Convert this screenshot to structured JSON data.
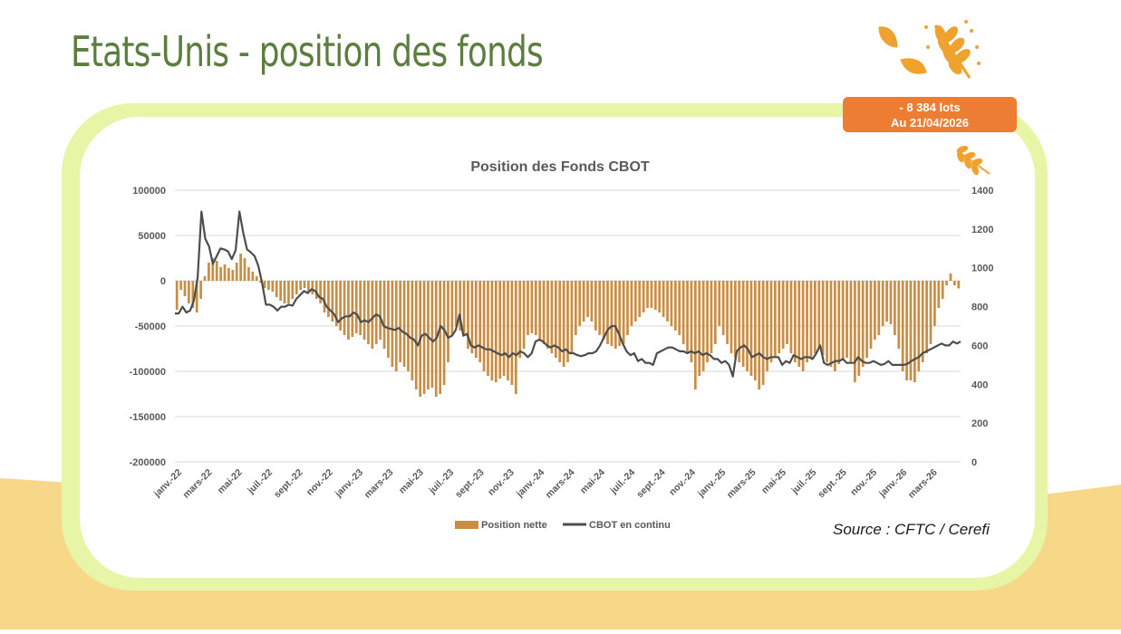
{
  "page": {
    "title": "Etats-Unis - position des fonds",
    "badge_line1": "- 8 384 lots",
    "badge_line2": "Au 21/04/2026",
    "source": "Source : CFTC / Cerefi"
  },
  "colors": {
    "title_green": "#5b7d3e",
    "frame_green": "#e6f5a6",
    "badge_orange": "#ec7d32",
    "bar_color": "#c98e45",
    "line_color": "#4d4d4d",
    "background_band": "#f7d889",
    "wheat_icon": "#f0a22e"
  },
  "icons": [
    "wheat-leaves-icon",
    "small-wheat-icon"
  ],
  "chart_data": {
    "type": "bar",
    "title": "Position des Fonds CBOT",
    "xlabel": "",
    "ylabel": "",
    "ylim": [
      -200000,
      100000
    ],
    "y2lim": [
      0,
      1400
    ],
    "yticks": [
      "100000",
      "50000",
      "0",
      "-50000",
      "-100000",
      "-150000",
      "-200000"
    ],
    "y2ticks": [
      "1400",
      "1200",
      "1000",
      "800",
      "600",
      "400",
      "200",
      "0"
    ],
    "xticks": [
      "janv.-22",
      "mars-22",
      "mai-22",
      "juil.-22",
      "sept.-22",
      "nov.-22",
      "janv.-23",
      "mars-23",
      "mai-23",
      "juil.-23",
      "sept.-23",
      "nov.-23",
      "janv.-24",
      "mars-24",
      "mai-24",
      "juil.-24",
      "sept.-24",
      "nov.-24",
      "janv.-25",
      "mars-25",
      "mai-25",
      "juil.-25",
      "sept.-25",
      "nov.-25",
      "janv.-26",
      "mars-26"
    ],
    "grid": true,
    "legend": "bottom",
    "series": [
      {
        "name": "Position nette",
        "type": "bar",
        "axis": "left",
        "values": [
          -32000,
          -10000,
          -17000,
          -25000,
          -30000,
          -35000,
          -20000,
          5000,
          20000,
          25000,
          22000,
          15000,
          18000,
          14000,
          12000,
          20000,
          30000,
          25000,
          15000,
          10000,
          5000,
          -2000,
          -8000,
          -10000,
          -12000,
          -18000,
          -22000,
          -25000,
          -25000,
          -20000,
          -15000,
          -10000,
          -8000,
          -12000,
          -15000,
          -20000,
          -25000,
          -35000,
          -40000,
          -45000,
          -50000,
          -55000,
          -60000,
          -65000,
          -62000,
          -58000,
          -60000,
          -65000,
          -70000,
          -75000,
          -70000,
          -65000,
          -75000,
          -85000,
          -95000,
          -100000,
          -90000,
          -95000,
          -100000,
          -110000,
          -120000,
          -128000,
          -125000,
          -120000,
          -118000,
          -128000,
          -125000,
          -115000,
          -90000,
          -60000,
          -50000,
          -55000,
          -60000,
          -75000,
          -80000,
          -85000,
          -90000,
          -100000,
          -105000,
          -110000,
          -112000,
          -108000,
          -105000,
          -110000,
          -115000,
          -125000,
          -85000,
          -75000,
          -60000,
          -58000,
          -60000,
          -65000,
          -70000,
          -75000,
          -80000,
          -85000,
          -90000,
          -95000,
          -90000,
          -80000,
          -60000,
          -50000,
          -45000,
          -40000,
          -45000,
          -55000,
          -60000,
          -65000,
          -70000,
          -72000,
          -75000,
          -72000,
          -70000,
          -60000,
          -50000,
          -45000,
          -40000,
          -35000,
          -30000,
          -30000,
          -32000,
          -35000,
          -40000,
          -45000,
          -50000,
          -55000,
          -60000,
          -70000,
          -80000,
          -90000,
          -120000,
          -105000,
          -100000,
          -90000,
          -80000,
          -70000,
          -50000,
          -60000,
          -70000,
          -80000,
          -85000,
          -90000,
          -95000,
          -100000,
          -105000,
          -110000,
          -120000,
          -115000,
          -100000,
          -90000,
          -85000,
          -80000,
          -75000,
          -70000,
          -80000,
          -90000,
          -95000,
          -100000,
          -90000,
          -85000,
          -80000,
          -75000,
          -82000,
          -90000,
          -95000,
          -100000,
          -92000,
          -88000,
          -85000,
          -90000,
          -112000,
          -105000,
          -95000,
          -85000,
          -75000,
          -65000,
          -60000,
          -50000,
          -45000,
          -48000,
          -60000,
          -75000,
          -100000,
          -110000,
          -110000,
          -112000,
          -100000,
          -90000,
          -80000,
          -70000,
          -50000,
          -30000,
          -20000,
          -5000,
          8000,
          -5000,
          -8384
        ]
      },
      {
        "name": "CBOT en continu",
        "type": "line",
        "axis": "right",
        "values": [
          765,
          765,
          800,
          770,
          780,
          830,
          950,
          1290,
          1150,
          1110,
          1020,
          1060,
          1100,
          1095,
          1085,
          1045,
          1090,
          1290,
          1180,
          1095,
          1080,
          1060,
          1010,
          920,
          810,
          810,
          800,
          780,
          800,
          800,
          810,
          805,
          840,
          860,
          880,
          870,
          890,
          880,
          850,
          840,
          800,
          780,
          760,
          720,
          740,
          750,
          750,
          770,
          760,
          720,
          730,
          720,
          740,
          760,
          750,
          700,
          690,
          685,
          680,
          690,
          670,
          660,
          640,
          630,
          600,
          650,
          660,
          640,
          620,
          640,
          700,
          680,
          640,
          650,
          680,
          760,
          650,
          660,
          600,
          590,
          600,
          590,
          580,
          580,
          570,
          560,
          550,
          560,
          540,
          560,
          550,
          570,
          560,
          540,
          560,
          620,
          630,
          620,
          600,
          590,
          600,
          590,
          570,
          580,
          560,
          560,
          550,
          545,
          550,
          560,
          560,
          570,
          600,
          640,
          680,
          700,
          700,
          660,
          610,
          570,
          550,
          560,
          520,
          530,
          510,
          510,
          500,
          560,
          570,
          580,
          590,
          590,
          580,
          570,
          570,
          560,
          570,
          560,
          570,
          550,
          560,
          550,
          530,
          530,
          510,
          520,
          500,
          440,
          570,
          590,
          600,
          580,
          540,
          550,
          560,
          540,
          530,
          540,
          540,
          540,
          500,
          520,
          510,
          550,
          540,
          530,
          540,
          540,
          530,
          560,
          600,
          510,
          500,
          510,
          520,
          520,
          530,
          510,
          510,
          510,
          540,
          520,
          510,
          510,
          520,
          510,
          500,
          505,
          520,
          500,
          500,
          500,
          500,
          505,
          520,
          530,
          540,
          560,
          570,
          580,
          590,
          600,
          610,
          600,
          600,
          620,
          610,
          620
        ]
      }
    ]
  }
}
